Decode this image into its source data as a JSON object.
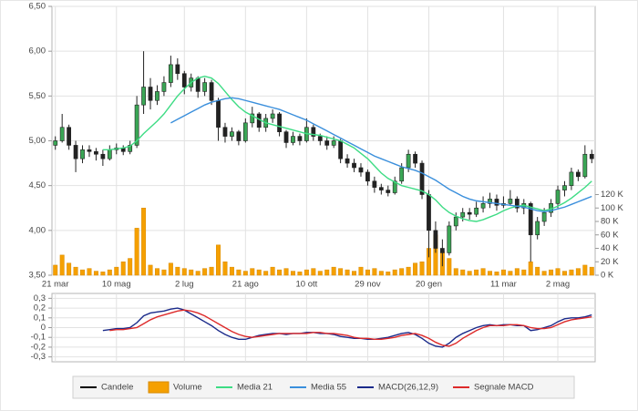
{
  "chart_data": [
    {
      "type": "candlestick",
      "name": "Candele",
      "up_color": "#3aa655",
      "down_color": "#222222",
      "grid": true,
      "categories": [
        "21 mar",
        null,
        null,
        null,
        null,
        null,
        null,
        null,
        null,
        "10 mag",
        null,
        null,
        null,
        null,
        null,
        null,
        null,
        null,
        null,
        "2 lug",
        null,
        null,
        null,
        null,
        null,
        null,
        null,
        null,
        "21 ago",
        null,
        null,
        null,
        null,
        null,
        null,
        null,
        null,
        "10 ott",
        null,
        null,
        null,
        null,
        null,
        null,
        null,
        null,
        "29 nov",
        null,
        null,
        null,
        null,
        null,
        null,
        null,
        null,
        "20 gen",
        null,
        null,
        null,
        null,
        null,
        null,
        null,
        null,
        null,
        null,
        "11 mar",
        null,
        null,
        null,
        null,
        null,
        null,
        null,
        "2 mag",
        null,
        null,
        null,
        null,
        null
      ],
      "open": [
        4.95,
        5.0,
        5.15,
        4.95,
        4.8,
        4.9,
        4.88,
        4.85,
        4.8,
        4.9,
        4.92,
        4.88,
        4.95,
        5.4,
        5.6,
        5.45,
        5.55,
        5.65,
        5.85,
        5.75,
        5.6,
        5.7,
        5.55,
        5.65,
        5.45,
        5.15,
        5.05,
        5.1,
        5.0,
        5.2,
        5.3,
        5.15,
        5.25,
        5.3,
        5.1,
        4.98,
        5.05,
        5.0,
        5.15,
        5.05,
        5.0,
        4.95,
        5.0,
        4.8,
        4.75,
        4.7,
        4.65,
        4.55,
        4.48,
        4.45,
        4.42,
        4.55,
        4.7,
        4.85,
        4.75,
        4.4,
        4.0,
        3.8,
        3.75,
        4.05,
        4.15,
        4.2,
        4.18,
        4.25,
        4.3,
        4.35,
        4.28,
        4.3,
        4.35,
        4.25,
        4.3,
        3.95,
        4.1,
        4.2,
        4.3,
        4.45,
        4.5,
        4.65,
        4.6,
        4.85
      ],
      "high": [
        5.05,
        5.3,
        5.18,
        5.0,
        4.95,
        4.95,
        4.92,
        4.9,
        4.95,
        4.97,
        4.95,
        5.0,
        5.5,
        6.0,
        5.7,
        5.62,
        5.72,
        5.95,
        5.92,
        5.78,
        5.75,
        5.72,
        5.7,
        5.68,
        5.48,
        5.2,
        5.15,
        5.12,
        5.25,
        5.38,
        5.32,
        5.3,
        5.35,
        5.32,
        5.12,
        5.1,
        5.08,
        5.25,
        5.18,
        5.08,
        5.05,
        5.05,
        5.02,
        4.85,
        4.8,
        4.75,
        4.68,
        4.6,
        4.52,
        4.5,
        4.6,
        4.75,
        4.9,
        4.88,
        4.78,
        4.45,
        4.1,
        3.9,
        4.1,
        4.2,
        4.25,
        4.25,
        4.32,
        4.38,
        4.42,
        4.4,
        4.38,
        4.45,
        4.38,
        4.35,
        4.32,
        4.15,
        4.25,
        4.35,
        4.5,
        4.55,
        4.7,
        4.68,
        4.95,
        4.9
      ],
      "low": [
        4.9,
        4.98,
        4.9,
        4.65,
        4.75,
        4.82,
        4.78,
        4.72,
        4.78,
        4.85,
        4.84,
        4.85,
        4.92,
        5.3,
        5.35,
        5.4,
        5.5,
        5.6,
        5.68,
        5.52,
        5.55,
        5.48,
        5.5,
        5.4,
        5.0,
        4.98,
        5.0,
        4.95,
        4.98,
        5.15,
        5.1,
        5.1,
        5.2,
        5.05,
        4.92,
        4.95,
        4.95,
        4.98,
        5.0,
        4.95,
        4.9,
        4.92,
        4.75,
        4.7,
        4.65,
        4.6,
        4.5,
        4.42,
        4.4,
        4.38,
        4.4,
        4.52,
        4.65,
        4.7,
        4.35,
        3.7,
        3.75,
        3.6,
        3.72,
        4.0,
        4.1,
        4.12,
        4.15,
        4.2,
        4.25,
        4.22,
        4.25,
        4.28,
        4.2,
        4.18,
        3.65,
        3.9,
        4.05,
        4.15,
        4.25,
        4.38,
        4.45,
        4.55,
        4.58,
        4.75
      ],
      "close": [
        5.0,
        5.15,
        4.95,
        4.8,
        4.9,
        4.88,
        4.85,
        4.8,
        4.9,
        4.92,
        4.88,
        4.95,
        5.4,
        5.6,
        5.45,
        5.55,
        5.65,
        5.85,
        5.75,
        5.6,
        5.7,
        5.55,
        5.65,
        5.45,
        5.15,
        5.05,
        5.1,
        5.0,
        5.2,
        5.3,
        5.15,
        5.25,
        5.3,
        5.1,
        4.98,
        5.05,
        5.0,
        5.15,
        5.05,
        5.0,
        4.95,
        5.0,
        4.8,
        4.75,
        4.7,
        4.65,
        4.55,
        4.48,
        4.45,
        4.42,
        4.55,
        4.7,
        4.85,
        4.75,
        4.4,
        4.0,
        3.8,
        3.75,
        4.05,
        4.15,
        4.2,
        4.18,
        4.25,
        4.3,
        4.35,
        4.28,
        4.3,
        4.35,
        4.25,
        4.3,
        3.95,
        4.1,
        4.2,
        4.3,
        4.45,
        4.5,
        4.65,
        4.6,
        4.85,
        4.8
      ],
      "ylim": [
        3.5,
        6.5
      ],
      "yticks": [
        {
          "value": 3.5,
          "label": "3,50"
        },
        {
          "value": 4,
          "label": "4,00"
        },
        {
          "value": 4.5,
          "label": "4,50"
        },
        {
          "value": 5,
          "label": "5,00"
        },
        {
          "value": 5.5,
          "label": "5,50"
        },
        {
          "value": 6,
          "label": "6,00"
        },
        {
          "value": 6.5,
          "label": "6,50"
        }
      ],
      "y2lim": [
        0,
        400000
      ],
      "y2ticks": [
        {
          "value": 0,
          "label": "0 K"
        },
        {
          "value": 20000,
          "label": "20 K"
        },
        {
          "value": 40000,
          "label": "40 K"
        },
        {
          "value": 60000,
          "label": "60 K"
        },
        {
          "value": 80000,
          "label": "80 K"
        },
        {
          "value": 100000,
          "label": "100 K"
        },
        {
          "value": 120000,
          "label": "120 K"
        }
      ],
      "series": [
        {
          "name": "Volume",
          "type": "bar",
          "axis": "y2",
          "color": "#f5a000",
          "values": [
            15000,
            30000,
            18000,
            12000,
            8000,
            10000,
            6000,
            5000,
            8000,
            12000,
            20000,
            25000,
            70000,
            100000,
            15000,
            10000,
            8000,
            18000,
            12000,
            10000,
            8000,
            6000,
            10000,
            12000,
            45000,
            20000,
            12000,
            8000,
            6000,
            10000,
            8000,
            6000,
            12000,
            8000,
            10000,
            6000,
            5000,
            8000,
            10000,
            6000,
            8000,
            12000,
            10000,
            8000,
            6000,
            12000,
            8000,
            10000,
            6000,
            5000,
            8000,
            10000,
            12000,
            18000,
            20000,
            40000,
            60000,
            35000,
            25000,
            10000,
            8000,
            6000,
            8000,
            10000,
            6000,
            5000,
            8000,
            6000,
            10000,
            8000,
            20000,
            12000,
            6000,
            8000,
            10000,
            6000,
            8000,
            10000,
            15000,
            12000
          ]
        },
        {
          "name": "Media 21",
          "type": "line",
          "color": "#3ddc84",
          "values": [
            null,
            null,
            null,
            null,
            null,
            null,
            null,
            4.9,
            4.9,
            4.91,
            4.92,
            4.94,
            5.0,
            5.08,
            5.15,
            5.22,
            5.3,
            5.4,
            5.5,
            5.58,
            5.65,
            5.7,
            5.72,
            5.7,
            5.64,
            5.55,
            5.46,
            5.38,
            5.32,
            5.28,
            5.24,
            5.2,
            5.18,
            5.16,
            5.14,
            5.12,
            5.1,
            5.08,
            5.07,
            5.06,
            5.04,
            5.02,
            5.0,
            4.96,
            4.92,
            4.86,
            4.8,
            4.72,
            4.64,
            4.58,
            4.54,
            4.5,
            4.48,
            4.46,
            4.44,
            4.4,
            4.34,
            4.26,
            4.2,
            4.16,
            4.13,
            4.11,
            4.1,
            4.12,
            4.15,
            4.18,
            4.22,
            4.25,
            4.27,
            4.28,
            4.26,
            4.24,
            4.22,
            4.24,
            4.27,
            4.31,
            4.36,
            4.42,
            4.48,
            4.55
          ]
        },
        {
          "name": "Media 55",
          "type": "line",
          "color": "#3a8fdc",
          "values": [
            null,
            null,
            null,
            null,
            null,
            null,
            null,
            null,
            null,
            null,
            null,
            null,
            null,
            null,
            null,
            null,
            null,
            5.2,
            5.24,
            5.28,
            5.32,
            5.36,
            5.4,
            5.43,
            5.45,
            5.47,
            5.48,
            5.47,
            5.45,
            5.43,
            5.41,
            5.39,
            5.37,
            5.35,
            5.32,
            5.29,
            5.26,
            5.23,
            5.19,
            5.15,
            5.11,
            5.07,
            5.03,
            4.99,
            4.95,
            4.91,
            4.87,
            4.83,
            4.8,
            4.77,
            4.74,
            4.71,
            4.69,
            4.67,
            4.64,
            4.6,
            4.56,
            4.51,
            4.46,
            4.42,
            4.38,
            4.35,
            4.33,
            4.32,
            4.31,
            4.3,
            4.29,
            4.28,
            4.27,
            4.26,
            4.24,
            4.22,
            4.21,
            4.22,
            4.24,
            4.26,
            4.29,
            4.32,
            4.35,
            4.38
          ]
        }
      ]
    },
    {
      "type": "line",
      "grid": true,
      "ylim": [
        -0.35,
        0.35
      ],
      "yticks": [
        {
          "value": -0.3,
          "label": "-0,3"
        },
        {
          "value": -0.2,
          "label": "-0,2"
        },
        {
          "value": -0.1,
          "label": "-0,1"
        },
        0,
        {
          "value": 0.1,
          "label": "0,1"
        },
        {
          "value": 0.2,
          "label": "0,2"
        },
        {
          "value": 0.3,
          "label": "0,3"
        }
      ],
      "series": [
        {
          "name": "MACD(26,12,9)",
          "color": "#1a2a8a",
          "values": [
            null,
            null,
            null,
            null,
            null,
            null,
            null,
            -0.03,
            -0.02,
            -0.01,
            -0.01,
            0.0,
            0.05,
            0.12,
            0.15,
            0.16,
            0.17,
            0.19,
            0.2,
            0.18,
            0.14,
            0.1,
            0.06,
            0.02,
            -0.03,
            -0.07,
            -0.1,
            -0.12,
            -0.12,
            -0.1,
            -0.08,
            -0.07,
            -0.06,
            -0.06,
            -0.07,
            -0.06,
            -0.06,
            -0.05,
            -0.05,
            -0.06,
            -0.06,
            -0.07,
            -0.09,
            -0.1,
            -0.11,
            -0.11,
            -0.12,
            -0.12,
            -0.11,
            -0.1,
            -0.08,
            -0.06,
            -0.05,
            -0.07,
            -0.11,
            -0.16,
            -0.19,
            -0.2,
            -0.16,
            -0.1,
            -0.06,
            -0.03,
            0.0,
            0.02,
            0.03,
            0.02,
            0.03,
            0.03,
            0.02,
            0.02,
            -0.03,
            -0.02,
            0.0,
            0.02,
            0.06,
            0.09,
            0.1,
            0.1,
            0.11,
            0.13
          ]
        },
        {
          "name": "Segnale MACD",
          "color": "#dd2a2a",
          "values": [
            null,
            null,
            null,
            null,
            null,
            null,
            null,
            null,
            -0.03,
            -0.02,
            -0.02,
            -0.01,
            0.0,
            0.04,
            0.08,
            0.11,
            0.13,
            0.15,
            0.17,
            0.18,
            0.17,
            0.15,
            0.12,
            0.08,
            0.04,
            0.0,
            -0.04,
            -0.07,
            -0.09,
            -0.1,
            -0.09,
            -0.08,
            -0.07,
            -0.06,
            -0.06,
            -0.06,
            -0.06,
            -0.06,
            -0.05,
            -0.05,
            -0.06,
            -0.06,
            -0.07,
            -0.08,
            -0.1,
            -0.11,
            -0.11,
            -0.12,
            -0.12,
            -0.11,
            -0.1,
            -0.08,
            -0.07,
            -0.06,
            -0.08,
            -0.11,
            -0.15,
            -0.18,
            -0.19,
            -0.16,
            -0.11,
            -0.07,
            -0.03,
            0.0,
            0.02,
            0.02,
            0.02,
            0.03,
            0.03,
            0.02,
            0.0,
            -0.01,
            -0.01,
            0.0,
            0.03,
            0.06,
            0.08,
            0.09,
            0.1,
            0.11
          ]
        }
      ]
    }
  ]
}
